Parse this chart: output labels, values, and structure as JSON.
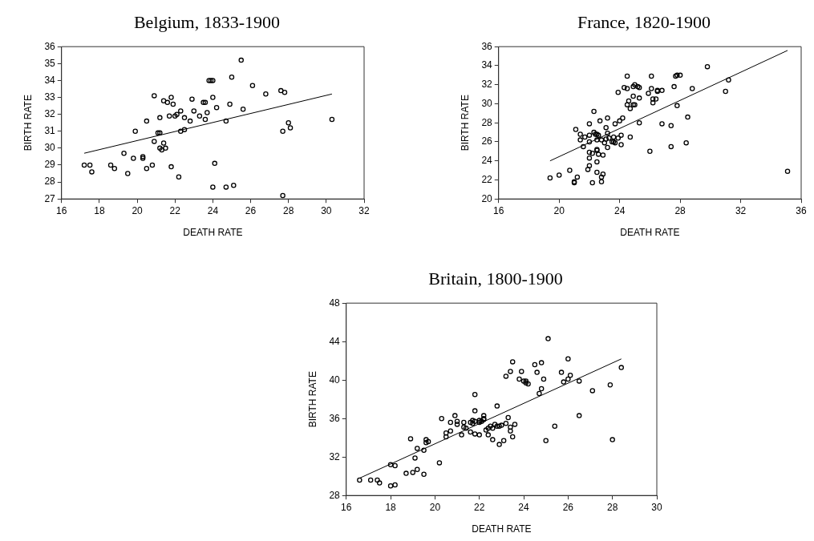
{
  "chart_data": [
    {
      "type": "scatter",
      "title": "Belgium, 1833-1900",
      "xlabel": "DEATH RATE",
      "ylabel": "BIRTH RATE",
      "xlim": [
        16,
        32
      ],
      "xticks": [
        16,
        18,
        20,
        22,
        24,
        26,
        28,
        30,
        32
      ],
      "ylim": [
        27,
        36
      ],
      "yticks": [
        27,
        28,
        29,
        30,
        31,
        32,
        33,
        34,
        35,
        36
      ],
      "legend": false,
      "grid": false,
      "series": [
        {
          "marker": "circle",
          "color": "#000000",
          "x": [
            17.2,
            17.5,
            17.6,
            18.6,
            18.8,
            19.3,
            19.5,
            19.8,
            19.9,
            20.3,
            20.3,
            20.5,
            20.5,
            20.8,
            20.9,
            20.9,
            21.1,
            21.2,
            21.2,
            21.2,
            21.3,
            21.4,
            21.4,
            21.5,
            21.6,
            21.7,
            21.8,
            21.8,
            21.9,
            22.0,
            22.1,
            22.2,
            22.3,
            22.3,
            22.5,
            22.5,
            22.8,
            22.9,
            23.0,
            23.3,
            23.5,
            23.6,
            23.6,
            23.7,
            23.8,
            23.9,
            24.0,
            24.0,
            24.0,
            24.1,
            24.2,
            24.7,
            24.7,
            24.9,
            25.0,
            25.1,
            25.5,
            25.6,
            26.1,
            26.8,
            27.6,
            27.8,
            27.7,
            27.7,
            28.0,
            28.1,
            30.3
          ],
          "values": [
            29.0,
            29.0,
            28.6,
            29.0,
            28.8,
            29.7,
            28.5,
            29.4,
            31.0,
            29.5,
            29.4,
            31.6,
            28.8,
            29.0,
            33.1,
            30.4,
            30.9,
            30.9,
            31.8,
            30.0,
            29.9,
            32.8,
            30.3,
            30.0,
            32.7,
            31.9,
            33.0,
            28.9,
            32.6,
            31.9,
            32.0,
            28.3,
            32.2,
            31.0,
            31.1,
            31.8,
            31.6,
            32.9,
            32.2,
            31.9,
            32.7,
            32.7,
            31.7,
            32.1,
            34.0,
            34.0,
            34.0,
            33.0,
            27.7,
            29.1,
            32.4,
            31.6,
            27.7,
            32.6,
            34.2,
            27.8,
            35.2,
            32.3,
            33.7,
            33.2,
            33.4,
            33.3,
            31.0,
            27.2,
            31.5,
            31.2,
            31.7
          ]
        },
        {
          "type": "line",
          "marker": "none",
          "color": "#000000",
          "x": [
            17.2,
            30.3
          ],
          "values": [
            29.7,
            33.2
          ]
        }
      ]
    },
    {
      "type": "scatter",
      "title": "France, 1820-1900",
      "xlabel": "DEATH RATE",
      "ylabel": "BIRTH RATE",
      "xlim": [
        16,
        36
      ],
      "xticks": [
        16,
        20,
        24,
        28,
        32,
        36
      ],
      "ylim": [
        20,
        36
      ],
      "yticks": [
        20,
        22,
        24,
        26,
        28,
        30,
        32,
        34,
        36
      ],
      "legend": false,
      "grid": false,
      "series": [
        {
          "marker": "circle",
          "color": "#000000",
          "x": [
            19.4,
            20.0,
            20.7,
            21.0,
            21.0,
            21.2,
            21.1,
            21.4,
            21.4,
            21.6,
            21.7,
            21.9,
            22.0,
            22.0,
            22.0,
            22.0,
            22.0,
            22.0,
            22.2,
            22.2,
            22.3,
            22.3,
            22.4,
            22.5,
            22.5,
            22.5,
            22.5,
            22.5,
            22.5,
            22.6,
            22.7,
            22.6,
            22.8,
            22.8,
            22.8,
            22.9,
            22.9,
            23.0,
            23.1,
            23.1,
            23.2,
            23.2,
            23.2,
            23.3,
            23.5,
            23.6,
            23.6,
            23.7,
            23.7,
            23.9,
            23.9,
            24.0,
            24.1,
            24.1,
            24.2,
            24.3,
            24.5,
            24.5,
            24.5,
            24.6,
            24.7,
            24.7,
            24.9,
            24.9,
            25.0,
            24.9,
            25.0,
            25.2,
            25.3,
            25.3,
            25.3,
            25.9,
            26.0,
            26.1,
            26.1,
            26.2,
            26.2,
            26.4,
            26.5,
            26.5,
            26.8,
            26.8,
            27.4,
            27.4,
            27.6,
            27.7,
            27.8,
            28.0,
            27.8,
            28.4,
            28.5,
            28.8,
            29.8,
            31.0,
            31.2,
            35.1
          ],
          "values": [
            22.2,
            22.5,
            23.0,
            21.7,
            21.8,
            22.3,
            27.3,
            26.8,
            26.2,
            25.5,
            26.5,
            23.1,
            27.9,
            26.7,
            26.0,
            24.9,
            24.3,
            23.5,
            24.8,
            21.7,
            29.2,
            27.0,
            26.8,
            23.9,
            22.8,
            25.2,
            25.1,
            26.8,
            26.2,
            24.7,
            28.2,
            26.7,
            22.3,
            21.8,
            26.2,
            22.6,
            24.6,
            25.9,
            27.5,
            26.3,
            26.9,
            28.5,
            25.4,
            26.4,
            26.0,
            26.5,
            26.0,
            25.9,
            27.9,
            26.4,
            31.2,
            28.2,
            25.7,
            26.7,
            28.5,
            31.7,
            32.9,
            31.6,
            29.9,
            30.3,
            29.5,
            26.5,
            31.8,
            30.8,
            32.0,
            29.9,
            29.9,
            31.8,
            31.7,
            30.6,
            28.0,
            31.1,
            25.0,
            32.9,
            31.6,
            30.1,
            30.5,
            30.5,
            31.3,
            31.4,
            31.4,
            27.9,
            27.7,
            25.5,
            31.8,
            32.9,
            33.0,
            33.0,
            29.8,
            25.9,
            28.6,
            31.6,
            33.9,
            31.3,
            32.5,
            22.9
          ]
        },
        {
          "type": "line",
          "marker": "none",
          "color": "#000000",
          "x": [
            19.4,
            35.1
          ],
          "values": [
            24.0,
            35.6
          ]
        }
      ]
    },
    {
      "type": "scatter",
      "title": "Britain, 1800-1900",
      "xlabel": "DEATH RATE",
      "ylabel": "BIRTH RATE",
      "xlim": [
        16,
        30
      ],
      "xticks": [
        16,
        18,
        20,
        22,
        24,
        26,
        28,
        30
      ],
      "ylim": [
        28,
        48
      ],
      "yticks": [
        28,
        32,
        36,
        40,
        44,
        48
      ],
      "legend": false,
      "grid": false,
      "series": [
        {
          "marker": "circle",
          "color": "#000000",
          "x": [
            16.6,
            17.1,
            17.4,
            17.5,
            18.0,
            18.2,
            18.0,
            18.2,
            18.7,
            18.9,
            19.0,
            19.1,
            19.2,
            19.2,
            19.5,
            19.5,
            19.6,
            19.6,
            19.7,
            20.2,
            20.3,
            20.5,
            20.5,
            20.7,
            20.7,
            20.9,
            21.0,
            21.0,
            21.2,
            21.3,
            21.3,
            21.4,
            21.6,
            21.6,
            21.7,
            21.7,
            21.8,
            21.8,
            21.8,
            21.8,
            22.0,
            22.0,
            22.0,
            22.1,
            22.2,
            22.2,
            22.2,
            22.3,
            22.4,
            22.4,
            22.5,
            22.6,
            22.6,
            22.7,
            22.8,
            22.8,
            22.9,
            22.9,
            23.0,
            23.1,
            23.2,
            23.2,
            23.3,
            23.4,
            23.4,
            23.4,
            23.5,
            23.5,
            23.6,
            23.8,
            23.9,
            24.0,
            24.1,
            24.1,
            24.2,
            24.5,
            24.6,
            24.7,
            24.8,
            24.8,
            24.9,
            25.0,
            25.1,
            25.4,
            25.7,
            25.8,
            26.0,
            26.0,
            26.1,
            26.5,
            26.5,
            27.1,
            27.9,
            28.0,
            28.4
          ],
          "values": [
            29.6,
            29.6,
            29.6,
            29.3,
            29.0,
            29.1,
            31.2,
            31.1,
            30.3,
            33.9,
            30.4,
            31.9,
            32.9,
            30.7,
            32.7,
            30.2,
            33.8,
            33.5,
            33.6,
            31.4,
            36.0,
            34.5,
            34.1,
            34.7,
            35.6,
            36.3,
            35.7,
            35.4,
            34.3,
            35.1,
            35.6,
            35.0,
            34.6,
            35.6,
            35.5,
            35.8,
            38.5,
            34.4,
            36.8,
            35.7,
            35.8,
            34.3,
            35.6,
            35.7,
            35.9,
            36.0,
            36.3,
            34.8,
            34.3,
            35.0,
            35.2,
            33.8,
            35.0,
            35.4,
            37.3,
            35.2,
            33.3,
            35.2,
            35.3,
            33.7,
            35.5,
            40.4,
            36.1,
            34.7,
            35.1,
            40.9,
            34.1,
            41.9,
            35.4,
            40.1,
            40.9,
            39.9,
            39.9,
            39.7,
            39.6,
            41.6,
            40.8,
            38.6,
            39.1,
            41.8,
            40.1,
            33.7,
            44.3,
            35.2,
            40.8,
            39.8,
            42.2,
            40.1,
            40.5,
            39.9,
            36.3,
            38.9,
            39.5,
            33.8,
            41.3
          ]
        },
        {
          "type": "line",
          "marker": "none",
          "color": "#000000",
          "x": [
            16.6,
            28.4
          ],
          "values": [
            29.8,
            42.2
          ]
        }
      ]
    }
  ]
}
